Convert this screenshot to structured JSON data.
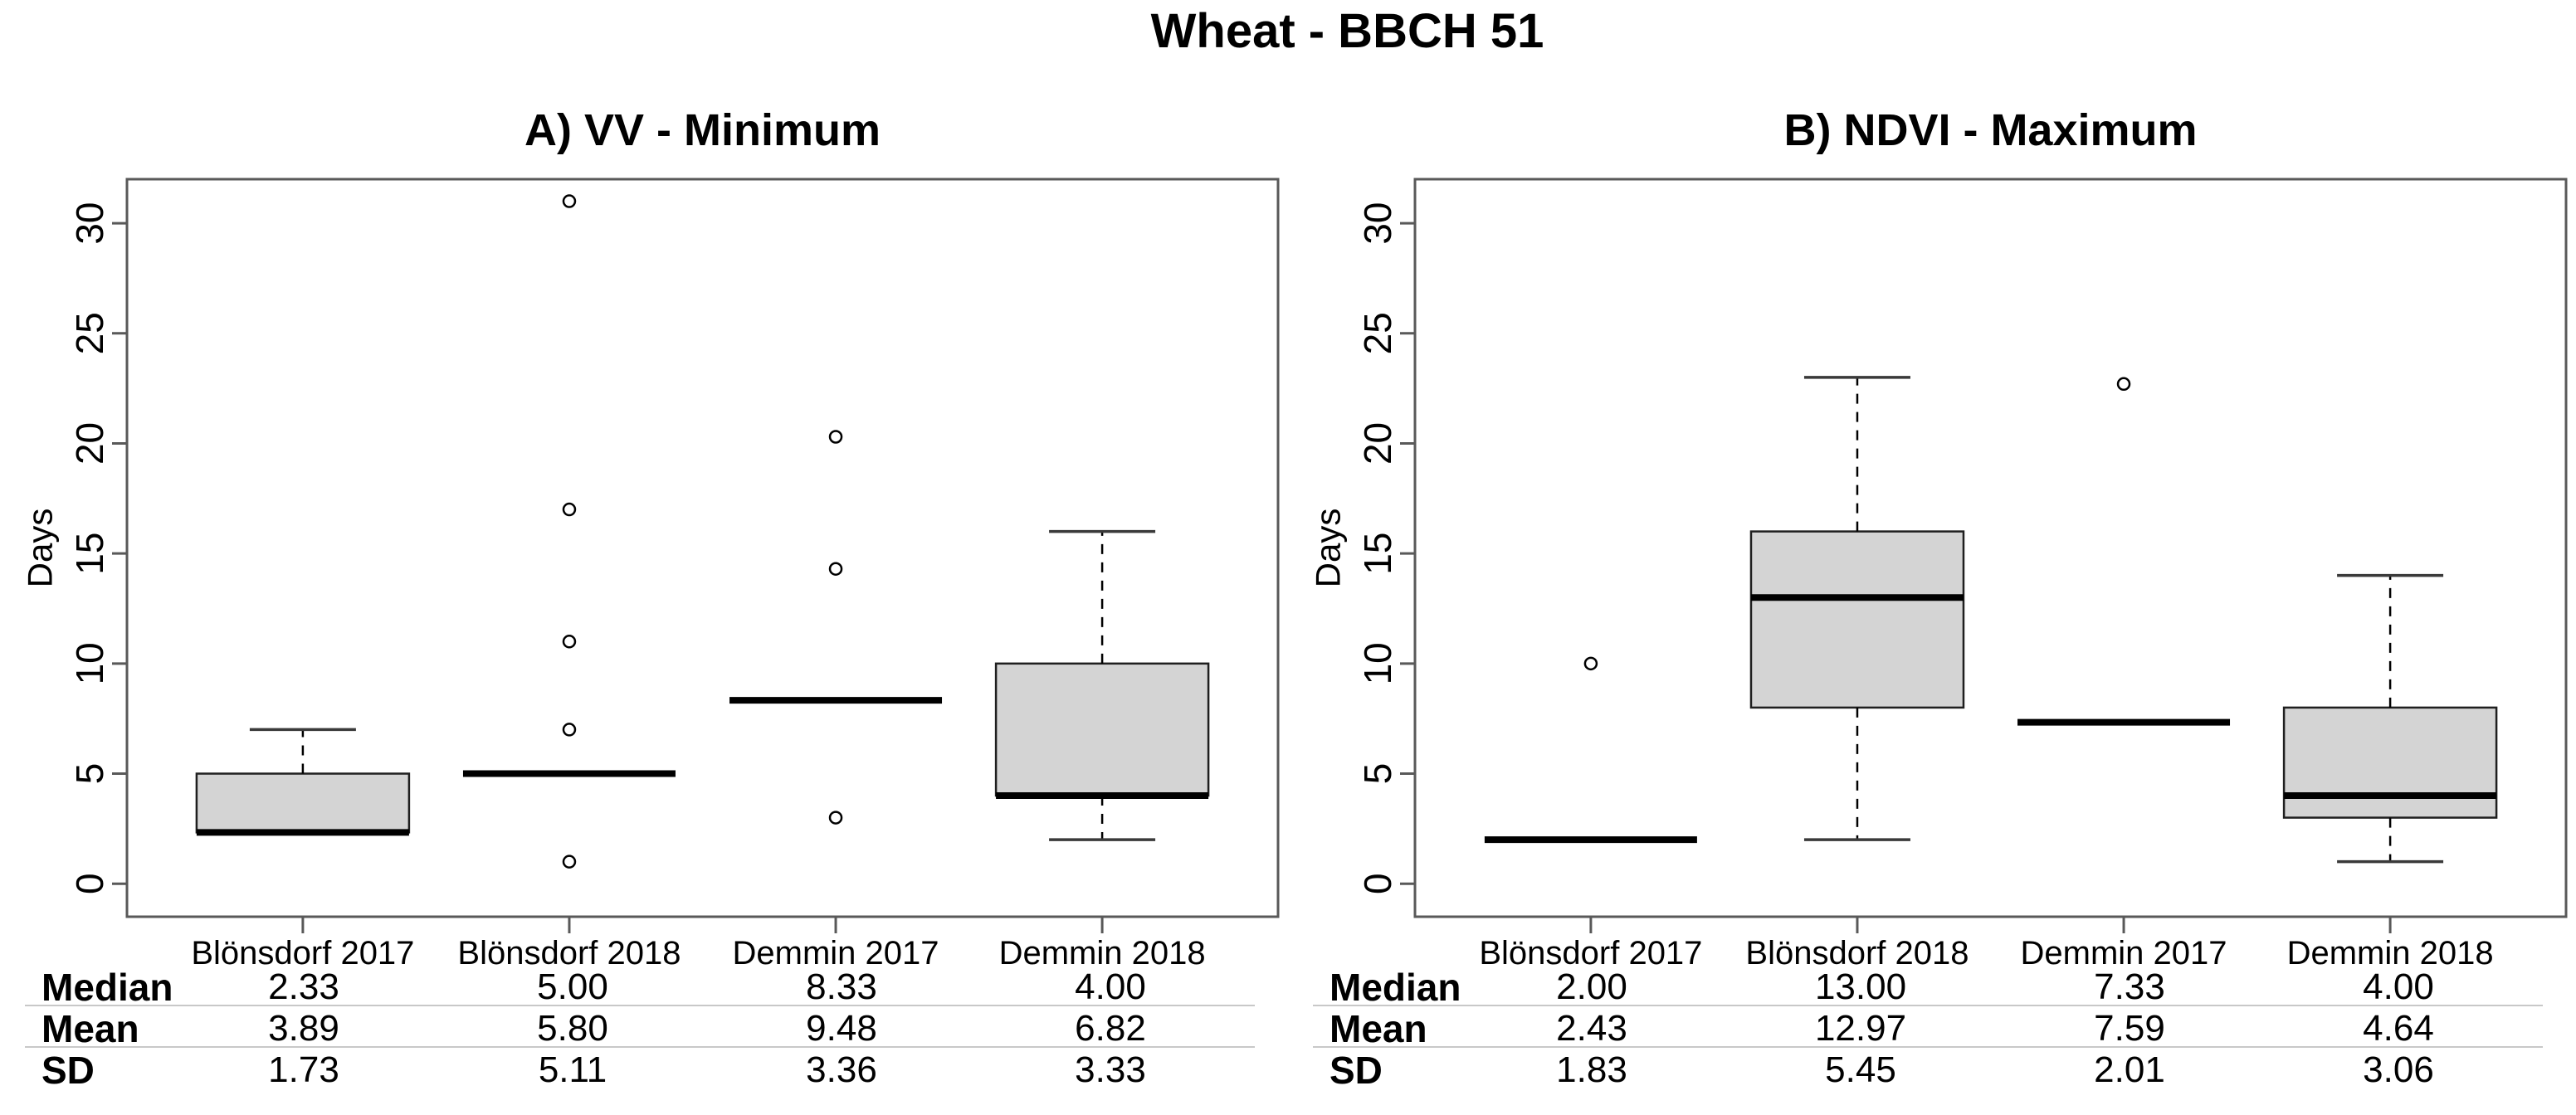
{
  "page": {
    "title": "Wheat - BBCH 51"
  },
  "style": {
    "box_fill": "#d4d4d4",
    "box_stroke": "#1f1f1f",
    "frame_color": "#595959",
    "median_color": "#000000",
    "whisker_color": "#000000",
    "whisker_cap_color": "#3a3a3a",
    "outlier_stroke": "#000000",
    "separator_color": "#c8c8c8"
  },
  "chart_data": [
    {
      "type": "boxplot",
      "panel_label": "A) VV - Minimum",
      "ylabel": "Days",
      "ylim": [
        -1.5,
        32
      ],
      "xlim": [
        0.34,
        4.66
      ],
      "yticks": [
        0,
        5,
        10,
        15,
        20,
        25,
        30
      ],
      "grid": false,
      "categories": [
        "Blönsdorf 2017",
        "Blönsdorf 2018",
        "Demmin 2017",
        "Demmin 2018"
      ],
      "boxes": [
        {
          "category": "Blönsdorf 2017",
          "q1": 2.33,
          "median": 2.33,
          "q3": 5.0,
          "whisker_low": 2.33,
          "whisker_high": 7.0,
          "outliers": []
        },
        {
          "category": "Blönsdorf 2018",
          "q1": 5.0,
          "median": 5.0,
          "q3": 5.0,
          "whisker_low": 5.0,
          "whisker_high": 5.0,
          "outliers": [
            31.0,
            17.0,
            11.0,
            7.0,
            1.0
          ]
        },
        {
          "category": "Demmin 2017",
          "q1": 8.33,
          "median": 8.33,
          "q3": 8.33,
          "whisker_low": 8.33,
          "whisker_high": 8.33,
          "outliers": [
            20.3,
            14.3,
            3.0
          ]
        },
        {
          "category": "Demmin 2018",
          "q1": 4.0,
          "median": 4.0,
          "q3": 10.0,
          "whisker_low": 2.0,
          "whisker_high": 16.0,
          "outliers": []
        }
      ],
      "stats_table": {
        "row_labels": [
          "Median",
          "Mean",
          "SD"
        ],
        "rows": [
          [
            "2.33",
            "5.00",
            "8.33",
            "4.00"
          ],
          [
            "3.89",
            "5.80",
            "9.48",
            "6.82"
          ],
          [
            "1.73",
            "5.11",
            "3.36",
            "3.33"
          ]
        ]
      }
    },
    {
      "type": "boxplot",
      "panel_label": "B) NDVI - Maximum",
      "ylabel": "Days",
      "ylim": [
        -1.5,
        32
      ],
      "xlim": [
        0.34,
        4.66
      ],
      "yticks": [
        0,
        5,
        10,
        15,
        20,
        25,
        30
      ],
      "grid": false,
      "categories": [
        "Blönsdorf 2017",
        "Blönsdorf 2018",
        "Demmin 2017",
        "Demmin 2018"
      ],
      "boxes": [
        {
          "category": "Blönsdorf 2017",
          "q1": 2.0,
          "median": 2.0,
          "q3": 2.0,
          "whisker_low": 2.0,
          "whisker_high": 2.0,
          "outliers": [
            10.0
          ]
        },
        {
          "category": "Blönsdorf 2018",
          "q1": 8.0,
          "median": 13.0,
          "q3": 16.0,
          "whisker_low": 2.0,
          "whisker_high": 23.0,
          "outliers": []
        },
        {
          "category": "Demmin 2017",
          "q1": 7.33,
          "median": 7.33,
          "q3": 7.33,
          "whisker_low": 7.33,
          "whisker_high": 7.33,
          "outliers": [
            22.7
          ]
        },
        {
          "category": "Demmin 2018",
          "q1": 3.0,
          "median": 4.0,
          "q3": 8.0,
          "whisker_low": 1.0,
          "whisker_high": 14.0,
          "outliers": []
        }
      ],
      "stats_table": {
        "row_labels": [
          "Median",
          "Mean",
          "SD"
        ],
        "rows": [
          [
            "2.00",
            "13.00",
            "7.33",
            "4.00"
          ],
          [
            "2.43",
            "12.97",
            "7.59",
            "4.64"
          ],
          [
            "1.83",
            "5.45",
            "2.01",
            "3.06"
          ]
        ]
      }
    }
  ]
}
